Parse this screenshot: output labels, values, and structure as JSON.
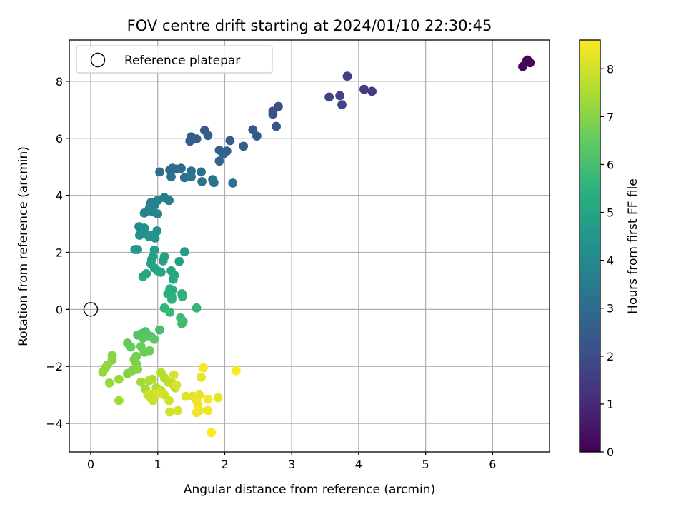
{
  "chart_data": {
    "type": "scatter",
    "title": "FOV centre drift starting at 2024/01/10 22:30:45",
    "xlabel": "Angular distance from reference (arcmin)",
    "ylabel": "Rotation from reference (arcmin)",
    "xlim": [
      -0.32,
      6.85
    ],
    "ylim": [
      -5.0,
      9.45
    ],
    "xticks": [
      0,
      1,
      2,
      3,
      4,
      5,
      6
    ],
    "yticks": [
      -4,
      -2,
      0,
      2,
      4,
      6,
      8
    ],
    "grid": true,
    "legend": {
      "placement": "top-left",
      "entries": [
        "Reference platepar"
      ]
    },
    "reference_point": {
      "x": 0,
      "y": 0
    },
    "colorbar": {
      "label": "Hours from first FF file",
      "colormap": "viridis",
      "range": [
        0,
        8.6
      ],
      "ticks": [
        0,
        1,
        2,
        3,
        4,
        5,
        6,
        7,
        8
      ]
    },
    "points": [
      [
        6.45,
        8.52,
        0.05
      ],
      [
        6.52,
        8.75,
        0.1
      ],
      [
        6.56,
        8.65,
        0.15
      ],
      [
        6.5,
        8.7,
        0.2
      ],
      [
        3.83,
        8.18,
        1.6
      ],
      [
        4.08,
        7.72,
        1.5
      ],
      [
        4.2,
        7.65,
        1.45
      ],
      [
        3.56,
        7.45,
        1.7
      ],
      [
        3.72,
        7.5,
        1.75
      ],
      [
        3.75,
        7.18,
        1.8
      ],
      [
        2.8,
        7.12,
        2.1
      ],
      [
        2.72,
        6.95,
        2.15
      ],
      [
        2.72,
        6.85,
        2.2
      ],
      [
        2.77,
        6.42,
        2.25
      ],
      [
        2.42,
        6.3,
        2.3
      ],
      [
        2.48,
        6.08,
        2.35
      ],
      [
        1.7,
        6.28,
        2.4
      ],
      [
        1.75,
        6.1,
        2.45
      ],
      [
        1.5,
        6.05,
        2.5
      ],
      [
        1.58,
        5.98,
        2.55
      ],
      [
        1.48,
        5.9,
        2.6
      ],
      [
        2.08,
        5.92,
        2.5
      ],
      [
        2.28,
        5.72,
        2.55
      ],
      [
        1.92,
        5.58,
        2.6
      ],
      [
        2.03,
        5.55,
        2.65
      ],
      [
        1.98,
        5.45,
        2.7
      ],
      [
        1.92,
        5.2,
        2.75
      ],
      [
        1.22,
        4.95,
        2.9
      ],
      [
        1.28,
        4.92,
        2.95
      ],
      [
        1.35,
        4.95,
        3.0
      ],
      [
        1.03,
        4.82,
        3.05
      ],
      [
        1.18,
        4.88,
        3.0
      ],
      [
        1.5,
        4.85,
        3.1
      ],
      [
        1.65,
        4.82,
        3.15
      ],
      [
        1.2,
        4.65,
        3.1
      ],
      [
        1.4,
        4.62,
        3.15
      ],
      [
        1.5,
        4.65,
        3.2
      ],
      [
        1.82,
        4.55,
        3.2
      ],
      [
        1.84,
        4.45,
        3.25
      ],
      [
        1.66,
        4.48,
        3.3
      ],
      [
        2.12,
        4.43,
        3.25
      ],
      [
        1.1,
        3.92,
        3.6
      ],
      [
        1.17,
        3.82,
        3.65
      ],
      [
        1.0,
        3.82,
        3.7
      ],
      [
        0.9,
        3.75,
        3.7
      ],
      [
        0.95,
        3.65,
        3.75
      ],
      [
        0.88,
        3.58,
        3.8
      ],
      [
        0.85,
        3.45,
        3.85
      ],
      [
        0.8,
        3.38,
        3.9
      ],
      [
        1.0,
        3.35,
        3.9
      ],
      [
        0.93,
        3.42,
        3.88
      ],
      [
        0.72,
        2.9,
        4.2
      ],
      [
        0.8,
        2.85,
        4.25
      ],
      [
        0.73,
        2.6,
        4.3
      ],
      [
        0.82,
        2.65,
        4.35
      ],
      [
        0.87,
        2.55,
        4.4
      ],
      [
        0.92,
        2.6,
        4.42
      ],
      [
        0.96,
        2.5,
        4.45
      ],
      [
        0.99,
        2.75,
        4.3
      ],
      [
        0.66,
        2.1,
        4.6
      ],
      [
        0.7,
        2.1,
        4.65
      ],
      [
        0.95,
        2.08,
        4.7
      ],
      [
        0.93,
        1.85,
        4.8
      ],
      [
        0.91,
        1.75,
        4.85
      ],
      [
        1.1,
        1.85,
        4.85
      ],
      [
        1.08,
        1.7,
        4.9
      ],
      [
        1.4,
        2.02,
        4.75
      ],
      [
        1.32,
        1.68,
        4.9
      ],
      [
        0.9,
        1.6,
        4.95
      ],
      [
        0.95,
        1.45,
        5.0
      ],
      [
        1.0,
        1.35,
        5.05
      ],
      [
        1.05,
        1.3,
        5.05
      ],
      [
        0.83,
        1.25,
        5.1
      ],
      [
        0.78,
        1.15,
        5.15
      ],
      [
        1.2,
        1.35,
        5.1
      ],
      [
        1.25,
        1.2,
        5.15
      ],
      [
        1.23,
        1.05,
        5.2
      ],
      [
        1.18,
        0.72,
        5.3
      ],
      [
        1.22,
        0.68,
        5.35
      ],
      [
        1.15,
        0.55,
        5.4
      ],
      [
        1.21,
        0.45,
        5.45
      ],
      [
        1.36,
        0.55,
        5.45
      ],
      [
        1.37,
        0.45,
        5.5
      ],
      [
        1.21,
        0.35,
        5.5
      ],
      [
        1.1,
        0.05,
        5.6
      ],
      [
        1.58,
        0.05,
        5.6
      ],
      [
        1.18,
        -0.1,
        5.7
      ],
      [
        1.34,
        -0.3,
        5.8
      ],
      [
        1.38,
        -0.42,
        5.85
      ],
      [
        1.36,
        -0.5,
        5.9
      ],
      [
        1.03,
        -0.72,
        6.0
      ],
      [
        0.82,
        -0.78,
        6.1
      ],
      [
        0.76,
        -0.85,
        6.15
      ],
      [
        0.7,
        -0.9,
        6.2
      ],
      [
        0.86,
        -0.92,
        6.25
      ],
      [
        0.9,
        -0.95,
        6.3
      ],
      [
        0.78,
        -1.0,
        6.35
      ],
      [
        0.95,
        -1.05,
        6.4
      ],
      [
        0.55,
        -1.18,
        6.5
      ],
      [
        0.6,
        -1.32,
        6.55
      ],
      [
        0.75,
        -1.3,
        6.6
      ],
      [
        0.8,
        -1.5,
        6.65
      ],
      [
        0.88,
        -1.45,
        6.7
      ],
      [
        0.68,
        -1.65,
        6.75
      ],
      [
        0.65,
        -1.75,
        6.8
      ],
      [
        0.68,
        -1.9,
        6.85
      ],
      [
        0.55,
        -2.25,
        6.9
      ],
      [
        0.62,
        -2.15,
        6.95
      ],
      [
        0.7,
        -2.1,
        7.0
      ],
      [
        0.32,
        -1.62,
        7.0
      ],
      [
        0.32,
        -1.78,
        7.05
      ],
      [
        0.25,
        -1.95,
        7.1
      ],
      [
        0.22,
        -2.05,
        7.15
      ],
      [
        0.18,
        -2.2,
        7.2
      ],
      [
        0.28,
        -2.58,
        7.25
      ],
      [
        0.42,
        -2.45,
        7.3
      ],
      [
        0.42,
        -3.2,
        7.35
      ],
      [
        0.75,
        -2.55,
        7.4
      ],
      [
        0.82,
        -2.8,
        7.45
      ],
      [
        0.87,
        -2.5,
        7.5
      ],
      [
        0.92,
        -2.45,
        7.55
      ],
      [
        0.98,
        -2.75,
        7.6
      ],
      [
        1.05,
        -2.22,
        7.6
      ],
      [
        1.1,
        -2.4,
        7.65
      ],
      [
        1.15,
        -2.55,
        7.7
      ],
      [
        1.22,
        -2.6,
        7.75
      ],
      [
        1.26,
        -2.75,
        7.8
      ],
      [
        1.05,
        -2.85,
        7.8
      ],
      [
        0.95,
        -2.95,
        7.85
      ],
      [
        0.85,
        -3.0,
        7.9
      ],
      [
        0.9,
        -3.12,
        7.9
      ],
      [
        0.93,
        -3.2,
        7.95
      ],
      [
        1.1,
        -3.0,
        8.0
      ],
      [
        1.17,
        -3.2,
        8.0
      ],
      [
        1.18,
        -3.6,
        8.05
      ],
      [
        1.3,
        -3.55,
        8.1
      ],
      [
        1.0,
        -2.95,
        8.1
      ],
      [
        1.28,
        -2.65,
        8.15
      ],
      [
        1.24,
        -2.3,
        8.1
      ],
      [
        1.42,
        -3.05,
        8.2
      ],
      [
        1.52,
        -3.05,
        8.25
      ],
      [
        1.62,
        -3.0,
        8.3
      ],
      [
        1.58,
        -3.2,
        8.35
      ],
      [
        1.6,
        -3.35,
        8.4
      ],
      [
        1.62,
        -3.55,
        8.4
      ],
      [
        1.58,
        -3.62,
        8.45
      ],
      [
        1.75,
        -3.55,
        8.45
      ],
      [
        1.75,
        -3.15,
        8.5
      ],
      [
        1.9,
        -3.1,
        8.35
      ],
      [
        1.65,
        -2.38,
        8.3
      ],
      [
        1.68,
        -2.05,
        8.55
      ],
      [
        2.17,
        -2.15,
        8.6
      ],
      [
        1.8,
        -4.32,
        8.6
      ]
    ]
  }
}
